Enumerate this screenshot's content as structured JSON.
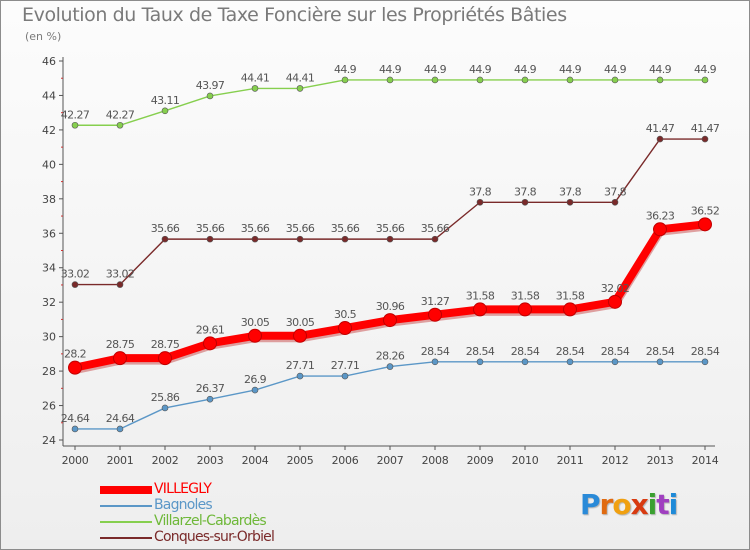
{
  "title": "Evolution du Taux de Taxe Foncière sur les Propriétés Bâties",
  "subtitle": "(en %)",
  "logo": {
    "text": "Proxiti",
    "letters": [
      "P",
      "r",
      "o",
      "x",
      "i",
      "t",
      "i"
    ],
    "colors": [
      "#2a8ad8",
      "#e06a10",
      "#f0a010",
      "#d83a10",
      "#3aa030",
      "#a040c0",
      "#1e8ad8"
    ]
  },
  "chart_data": {
    "type": "line",
    "title": "Evolution du Taux de Taxe Foncière sur les Propriétés Bâties",
    "ylabel": "(en %)",
    "xlabel": "",
    "x": [
      "2000",
      "2001",
      "2002",
      "2003",
      "2004",
      "2005",
      "2006",
      "2007",
      "2008",
      "2009",
      "2010",
      "2011",
      "2012",
      "2013",
      "2014"
    ],
    "ylim": [
      24,
      46
    ],
    "yticks": [
      24,
      26,
      28,
      30,
      32,
      34,
      36,
      38,
      40,
      42,
      44,
      46
    ],
    "grid": false,
    "legend_position": "bottom-left",
    "series": [
      {
        "name": "VILLEGLY",
        "color": "#ff0000",
        "thick": true,
        "values": [
          28.2,
          28.75,
          28.75,
          29.61,
          30.05,
          30.05,
          30.5,
          30.96,
          31.27,
          31.58,
          31.58,
          31.58,
          32.02,
          36.23,
          36.52
        ],
        "labels": [
          "28.2",
          "28.75",
          "28.75",
          "29.61",
          "30.05",
          "30.05",
          "30.5",
          "30.96",
          "31.27",
          "31.58",
          "31.58",
          "31.58",
          "32.02",
          "36.23",
          "36.52"
        ]
      },
      {
        "name": "Bagnoles",
        "color": "#5b97c7",
        "thick": false,
        "values": [
          24.64,
          24.64,
          25.86,
          26.37,
          26.9,
          27.71,
          27.71,
          28.26,
          28.54,
          28.54,
          28.54,
          28.54,
          28.54,
          28.54,
          28.54
        ],
        "labels": [
          "24.64",
          "24.64",
          "25.86",
          "26.37",
          "26.9",
          "27.71",
          "27.71",
          "28.26",
          "28.54",
          "28.54",
          "28.54",
          "28.54",
          "28.54",
          "28.54",
          "28.54"
        ]
      },
      {
        "name": "Villarzel-Cabardès",
        "color": "#86cf4e",
        "thick": false,
        "values": [
          42.27,
          42.27,
          43.11,
          43.97,
          44.41,
          44.41,
          44.9,
          44.9,
          44.9,
          44.9,
          44.9,
          44.9,
          44.9,
          44.9,
          44.9
        ],
        "labels": [
          "42.27",
          "42.27",
          "43.11",
          "43.97",
          "44.41",
          "44.41",
          "44.9",
          "44.9",
          "44.9",
          "44.9",
          "44.9",
          "44.9",
          "44.9",
          "44.9",
          "44.9"
        ]
      },
      {
        "name": "Conques-sur-Orbiel",
        "color": "#7a2a2a",
        "thick": false,
        "values": [
          33.02,
          33.02,
          35.66,
          35.66,
          35.66,
          35.66,
          35.66,
          35.66,
          35.66,
          37.8,
          37.8,
          37.8,
          37.8,
          41.47,
          41.47
        ],
        "labels": [
          "33.02",
          "33.02",
          "35.66",
          "35.66",
          "35.66",
          "35.66",
          "35.66",
          "35.66",
          "35.66",
          "37.8",
          "37.8",
          "37.8",
          "37.8",
          "41.47",
          "41.47"
        ]
      }
    ]
  }
}
